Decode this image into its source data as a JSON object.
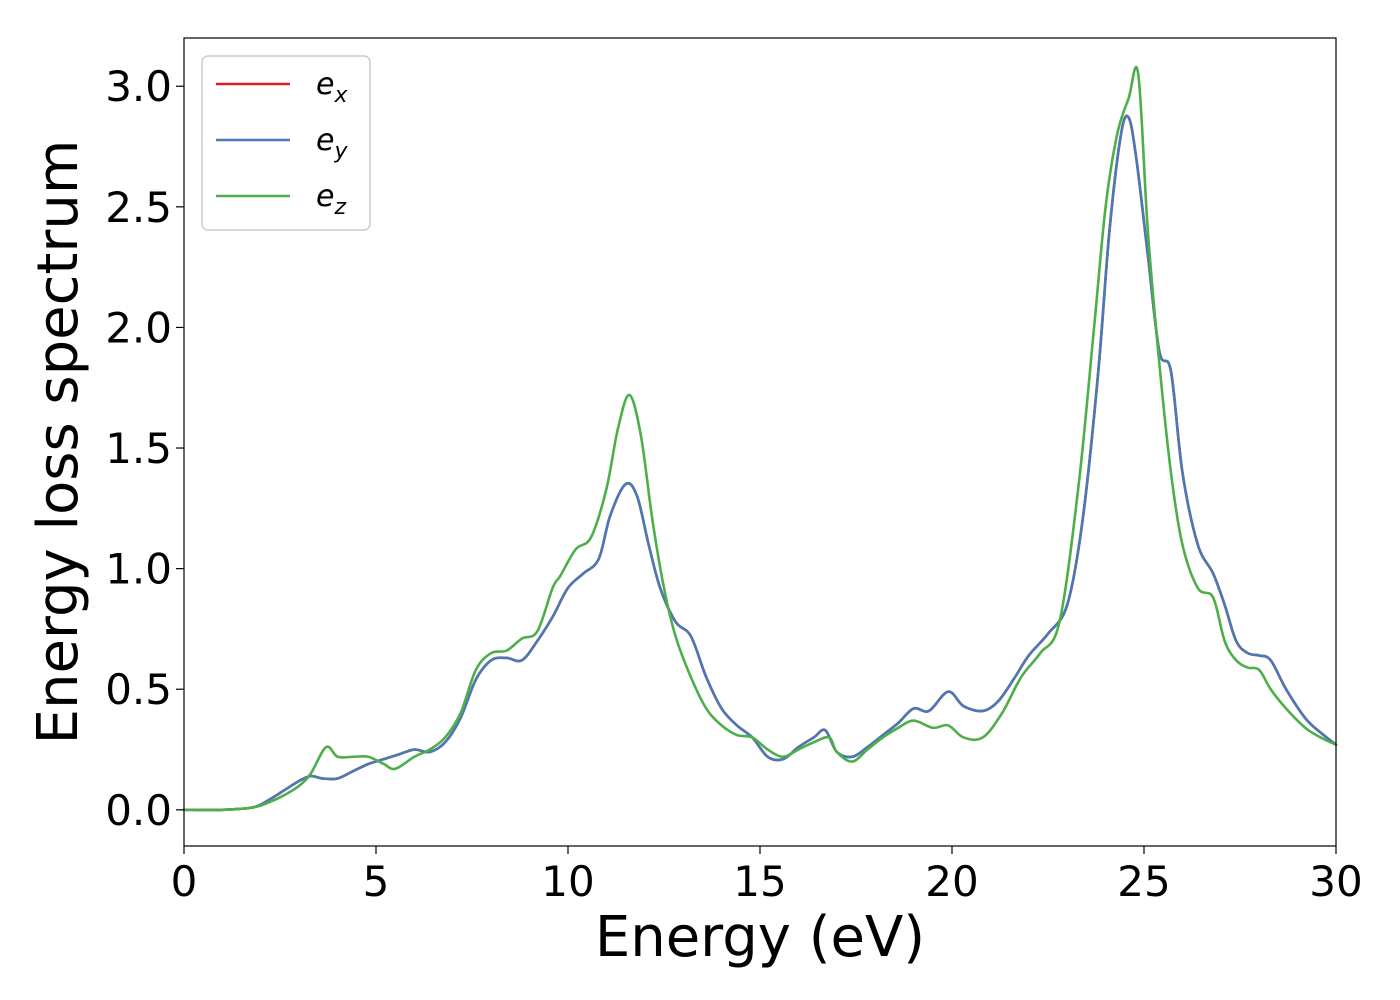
{
  "chart_data": {
    "type": "line",
    "title": "",
    "xlabel": "Energy (eV)",
    "ylabel": "Energy loss spectrum",
    "xlim": [
      0,
      30
    ],
    "ylim": [
      -0.15,
      3.2
    ],
    "xticks": [
      0,
      5,
      10,
      15,
      20,
      25,
      30
    ],
    "yticks": [
      0.0,
      0.5,
      1.0,
      1.5,
      2.0,
      2.5,
      3.0
    ],
    "xtick_labels": [
      "0",
      "5",
      "10",
      "15",
      "20",
      "25",
      "30"
    ],
    "ytick_labels": [
      "0.0",
      "0.5",
      "1.0",
      "1.5",
      "2.0",
      "2.5",
      "3.0"
    ],
    "grid": false,
    "legend_position": "top-left",
    "series": [
      {
        "name": "e",
        "subscript": "x",
        "color": "#e41a1c",
        "x": [
          0,
          1,
          1.8,
          2.2,
          2.6,
          3.0,
          3.3,
          3.6,
          4.0,
          4.4,
          4.8,
          5.2,
          5.6,
          6.0,
          6.4,
          6.8,
          7.2,
          7.6,
          8.0,
          8.4,
          8.8,
          9.2,
          9.6,
          10.0,
          10.4,
          10.8,
          11.1,
          11.5,
          11.8,
          12.1,
          12.4,
          12.8,
          13.2,
          13.6,
          14.0,
          14.4,
          14.8,
          15.2,
          15.6,
          16.0,
          16.4,
          16.7,
          17.0,
          17.4,
          17.8,
          18.2,
          18.6,
          19.0,
          19.4,
          19.9,
          20.3,
          20.8,
          21.2,
          21.6,
          22.0,
          22.5,
          23.0,
          23.4,
          23.8,
          24.1,
          24.4,
          24.6,
          24.8,
          25.1,
          25.4,
          25.7,
          26.0,
          26.4,
          26.8,
          27.1,
          27.4,
          27.7,
          28.0,
          28.3,
          28.7,
          29.2,
          29.6,
          30.0
        ],
        "values": [
          0.0,
          0.0,
          0.01,
          0.04,
          0.08,
          0.12,
          0.14,
          0.13,
          0.13,
          0.16,
          0.19,
          0.21,
          0.23,
          0.25,
          0.24,
          0.28,
          0.38,
          0.54,
          0.62,
          0.63,
          0.62,
          0.7,
          0.8,
          0.92,
          0.98,
          1.04,
          1.22,
          1.35,
          1.3,
          1.1,
          0.92,
          0.78,
          0.72,
          0.55,
          0.42,
          0.35,
          0.3,
          0.22,
          0.21,
          0.26,
          0.3,
          0.33,
          0.24,
          0.22,
          0.26,
          0.31,
          0.36,
          0.42,
          0.41,
          0.49,
          0.43,
          0.41,
          0.45,
          0.54,
          0.64,
          0.73,
          0.85,
          1.2,
          1.8,
          2.4,
          2.8,
          2.87,
          2.7,
          2.3,
          1.9,
          1.82,
          1.4,
          1.1,
          0.98,
          0.85,
          0.7,
          0.65,
          0.64,
          0.62,
          0.5,
          0.38,
          0.32,
          0.27
        ]
      },
      {
        "name": "e",
        "subscript": "y",
        "color": "#4a7ab5",
        "x": [
          0,
          1,
          1.8,
          2.2,
          2.6,
          3.0,
          3.3,
          3.6,
          4.0,
          4.4,
          4.8,
          5.2,
          5.6,
          6.0,
          6.4,
          6.8,
          7.2,
          7.6,
          8.0,
          8.4,
          8.8,
          9.2,
          9.6,
          10.0,
          10.4,
          10.8,
          11.1,
          11.5,
          11.8,
          12.1,
          12.4,
          12.8,
          13.2,
          13.6,
          14.0,
          14.4,
          14.8,
          15.2,
          15.6,
          16.0,
          16.4,
          16.7,
          17.0,
          17.4,
          17.8,
          18.2,
          18.6,
          19.0,
          19.4,
          19.9,
          20.3,
          20.8,
          21.2,
          21.6,
          22.0,
          22.5,
          23.0,
          23.4,
          23.8,
          24.1,
          24.4,
          24.6,
          24.8,
          25.1,
          25.4,
          25.7,
          26.0,
          26.4,
          26.8,
          27.1,
          27.4,
          27.7,
          28.0,
          28.3,
          28.7,
          29.2,
          29.6,
          30.0
        ],
        "values": [
          0.0,
          0.0,
          0.01,
          0.04,
          0.08,
          0.12,
          0.14,
          0.13,
          0.13,
          0.16,
          0.19,
          0.21,
          0.23,
          0.25,
          0.24,
          0.28,
          0.38,
          0.54,
          0.62,
          0.63,
          0.62,
          0.7,
          0.8,
          0.92,
          0.98,
          1.04,
          1.22,
          1.35,
          1.3,
          1.1,
          0.92,
          0.78,
          0.72,
          0.55,
          0.42,
          0.35,
          0.3,
          0.22,
          0.21,
          0.26,
          0.3,
          0.33,
          0.24,
          0.22,
          0.26,
          0.31,
          0.36,
          0.42,
          0.41,
          0.49,
          0.43,
          0.41,
          0.45,
          0.54,
          0.64,
          0.73,
          0.85,
          1.2,
          1.8,
          2.4,
          2.8,
          2.87,
          2.7,
          2.3,
          1.9,
          1.82,
          1.4,
          1.1,
          0.98,
          0.85,
          0.7,
          0.65,
          0.64,
          0.62,
          0.5,
          0.38,
          0.32,
          0.27
        ]
      },
      {
        "name": "e",
        "subscript": "z",
        "color": "#4daf4a",
        "x": [
          0,
          1,
          1.8,
          2.2,
          2.6,
          3.0,
          3.3,
          3.7,
          4.0,
          4.4,
          4.8,
          5.2,
          5.5,
          6.0,
          6.4,
          6.8,
          7.2,
          7.6,
          8.0,
          8.4,
          8.8,
          9.2,
          9.6,
          9.8,
          10.2,
          10.6,
          11.0,
          11.3,
          11.6,
          11.9,
          12.2,
          12.5,
          12.8,
          13.2,
          13.6,
          14.0,
          14.4,
          14.8,
          15.2,
          15.6,
          16.0,
          16.4,
          16.8,
          17.0,
          17.4,
          17.8,
          18.2,
          18.6,
          19.0,
          19.5,
          19.9,
          20.3,
          20.8,
          21.3,
          21.8,
          22.3,
          22.8,
          23.3,
          23.7,
          24.0,
          24.3,
          24.6,
          24.85,
          25.1,
          25.4,
          25.7,
          26.0,
          26.4,
          26.8,
          27.1,
          27.4,
          27.7,
          28.0,
          28.3,
          28.7,
          29.2,
          29.6,
          30.0
        ],
        "values": [
          0.0,
          0.0,
          0.01,
          0.03,
          0.06,
          0.1,
          0.15,
          0.26,
          0.22,
          0.22,
          0.22,
          0.19,
          0.17,
          0.22,
          0.25,
          0.3,
          0.4,
          0.58,
          0.65,
          0.66,
          0.71,
          0.74,
          0.92,
          0.97,
          1.08,
          1.13,
          1.33,
          1.58,
          1.72,
          1.55,
          1.2,
          0.92,
          0.72,
          0.55,
          0.42,
          0.35,
          0.31,
          0.3,
          0.25,
          0.22,
          0.25,
          0.28,
          0.3,
          0.24,
          0.2,
          0.25,
          0.3,
          0.34,
          0.37,
          0.34,
          0.35,
          0.3,
          0.3,
          0.4,
          0.55,
          0.65,
          0.78,
          1.35,
          2.0,
          2.5,
          2.8,
          2.95,
          3.05,
          2.4,
          1.85,
          1.4,
          1.1,
          0.92,
          0.88,
          0.7,
          0.62,
          0.59,
          0.58,
          0.5,
          0.42,
          0.34,
          0.3,
          0.27
        ]
      }
    ]
  }
}
